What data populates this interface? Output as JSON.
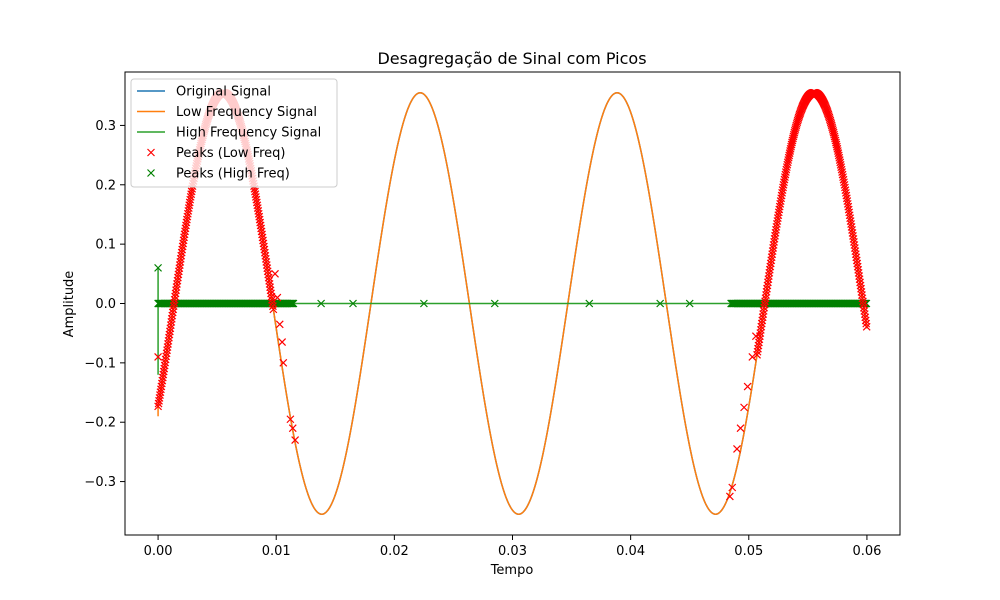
{
  "chart_data": {
    "type": "line",
    "title": "Desagregação de Sinal com Picos",
    "xlabel": "Tempo",
    "ylabel": "Amplitude",
    "xlim": [
      -0.0028,
      0.0628
    ],
    "ylim": [
      -0.39,
      0.39
    ],
    "x_ticks": [
      0.0,
      0.01,
      0.02,
      0.03,
      0.04,
      0.05,
      0.06
    ],
    "x_tick_labels": [
      "0.00",
      "0.01",
      "0.02",
      "0.03",
      "0.04",
      "0.05",
      "0.06"
    ],
    "y_ticks": [
      -0.3,
      -0.2,
      -0.1,
      0.0,
      0.1,
      0.2,
      0.3
    ],
    "y_tick_labels": [
      "−0.3",
      "−0.2",
      "−0.1",
      "0.0",
      "0.1",
      "0.2",
      "0.3"
    ],
    "grid": false,
    "legend_position": "top-left",
    "series": [
      {
        "name": "Original Signal",
        "color": "#1f77b4",
        "kind": "line"
      },
      {
        "name": "Low Frequency Signal",
        "color": "#ff7f0e",
        "kind": "line"
      },
      {
        "name": "High Frequency Signal",
        "color": "#2ca02c",
        "kind": "line"
      },
      {
        "name": "Peaks (Low Freq)",
        "color": "#ff0000",
        "kind": "marker"
      },
      {
        "name": "Peaks (High Freq)",
        "color": "#008000",
        "kind": "marker"
      }
    ],
    "low_freq_wave": {
      "amplitude": 0.355,
      "frequency_hz": 60,
      "phase_rad": -0.51,
      "x_range": [
        0.0,
        0.06
      ]
    },
    "high_freq_spike": {
      "x": 0.0,
      "y_range": [
        -0.12,
        0.06
      ]
    },
    "peak_regions_low_freq": [
      [
        0.0,
        0.0098
      ],
      [
        0.0507,
        0.06
      ]
    ],
    "peak_outliers_low_freq": [
      {
        "x": 0.0,
        "y": -0.09
      },
      {
        "x": 0.0099,
        "y": 0.05
      },
      {
        "x": 0.0101,
        "y": 0.01
      },
      {
        "x": 0.0103,
        "y": -0.035
      },
      {
        "x": 0.0105,
        "y": -0.065
      },
      {
        "x": 0.0106,
        "y": -0.1
      },
      {
        "x": 0.0112,
        "y": -0.195
      },
      {
        "x": 0.0114,
        "y": -0.21
      },
      {
        "x": 0.0116,
        "y": -0.23
      },
      {
        "x": 0.0484,
        "y": -0.325
      },
      {
        "x": 0.0486,
        "y": -0.31
      },
      {
        "x": 0.049,
        "y": -0.245
      },
      {
        "x": 0.0493,
        "y": -0.21
      },
      {
        "x": 0.0496,
        "y": -0.175
      },
      {
        "x": 0.0499,
        "y": -0.14
      },
      {
        "x": 0.0503,
        "y": -0.09
      },
      {
        "x": 0.0506,
        "y": -0.055
      }
    ],
    "peak_band_high_freq": {
      "dense_ranges": [
        [
          0.0,
          0.0115
        ],
        [
          0.0485,
          0.06
        ]
      ],
      "sparse_x": [
        0.0138,
        0.0165,
        0.0225,
        0.0285,
        0.0365,
        0.0425,
        0.045
      ],
      "y": 0.0
    },
    "peak_outliers_high_freq": [
      {
        "x": 0.0,
        "y": 0.06
      }
    ]
  }
}
